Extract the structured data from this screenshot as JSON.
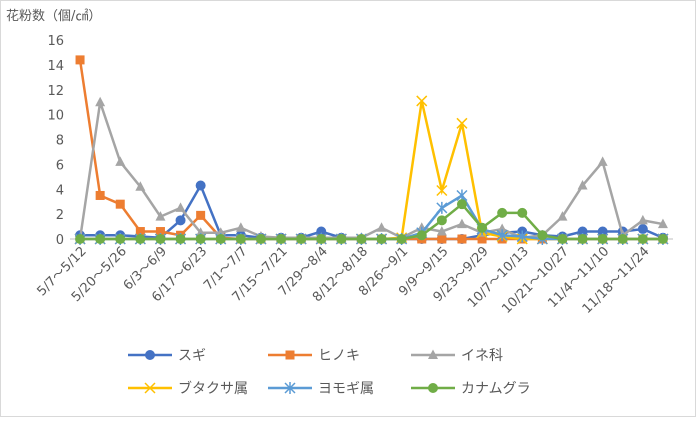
{
  "chart_data": {
    "type": "line",
    "y_axis_label": "花粉数（個/㎠）",
    "categories": [
      "5/7～5/12",
      null,
      "5/20～5/26",
      null,
      "6/3～6/9",
      null,
      "6/17～6/23",
      null,
      "7/1～7/7",
      null,
      "7/15～7/21",
      null,
      "7/29～8/4",
      null,
      "8/12～8/18",
      null,
      "8/26～9/1",
      null,
      "9/9～9/15",
      null,
      "9/23～9/29",
      null,
      "10/7～10/13",
      null,
      "10/21～10/27",
      null,
      "11/4～11/10",
      null,
      "11/18～11/24",
      null
    ],
    "series": [
      {
        "name": "スギ",
        "color": "#4472c4",
        "marker": "circle",
        "values": [
          0.3,
          0.3,
          0.3,
          0.2,
          0.1,
          1.5,
          4.3,
          0.3,
          0.3,
          0.1,
          0.1,
          0.1,
          0.6,
          0.1,
          0,
          0,
          0,
          0,
          0,
          0,
          0.3,
          0.5,
          0.6,
          0.3,
          0.2,
          0.6,
          0.6,
          0.6,
          0.8,
          0.1
        ]
      },
      {
        "name": "ヒノキ",
        "color": "#ed7d31",
        "marker": "square",
        "values": [
          14.4,
          3.5,
          2.8,
          0.6,
          0.6,
          0.3,
          1.9,
          0.1,
          0,
          0,
          0,
          0,
          0,
          0,
          0,
          0,
          0,
          0,
          0,
          0,
          0,
          0,
          0,
          0,
          0,
          0,
          0,
          0,
          0,
          0
        ]
      },
      {
        "name": "イネ科",
        "color": "#a5a5a5",
        "marker": "triangle",
        "values": [
          0,
          11,
          6.2,
          4.2,
          1.8,
          2.5,
          0.5,
          0.5,
          0.9,
          0.2,
          0.1,
          0.1,
          0.1,
          0.1,
          0.1,
          0.9,
          0.1,
          0.9,
          0.6,
          1.2,
          0.5,
          0.8,
          0.1,
          0.3,
          1.8,
          4.3,
          6.2,
          0.3,
          1.5,
          1.2
        ]
      },
      {
        "name": "ブタクサ属",
        "color": "#ffc000",
        "marker": "x",
        "values": [
          0,
          0,
          0,
          0,
          0,
          0,
          0,
          0,
          0,
          0,
          0,
          0,
          0,
          0,
          0,
          0,
          0.1,
          11.1,
          3.9,
          9.3,
          0.5,
          0.2,
          0,
          0,
          0,
          0,
          0,
          0,
          0,
          0
        ]
      },
      {
        "name": "ヨモギ属",
        "color": "#5b9bd5",
        "marker": "star",
        "values": [
          0,
          0,
          0,
          0,
          0,
          0,
          0,
          0,
          0,
          0,
          0,
          0,
          0,
          0,
          0,
          0,
          0,
          0.5,
          2.5,
          3.5,
          0.8,
          0.3,
          0.2,
          0,
          0,
          0,
          0,
          0,
          0,
          0
        ]
      },
      {
        "name": "カナムグラ",
        "color": "#70ad47",
        "marker": "circle",
        "values": [
          0,
          0,
          0,
          0,
          0,
          0,
          0,
          0,
          0,
          0,
          0,
          0,
          0,
          0,
          0,
          0,
          0,
          0.3,
          1.5,
          2.8,
          0.9,
          2.1,
          2.1,
          0.3,
          0,
          0,
          0,
          0,
          0,
          0
        ]
      }
    ],
    "ylim": [
      0,
      16
    ],
    "yticks": [
      0,
      2,
      4,
      6,
      8,
      10,
      12,
      14,
      16
    ],
    "grid": false,
    "legend": "bottom"
  }
}
